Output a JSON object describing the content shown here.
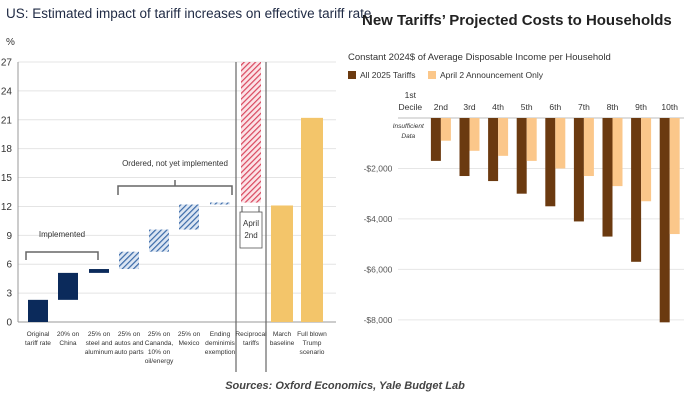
{
  "sources": "Sources: Oxford Economics, Yale Budget Lab",
  "chart_data": [
    {
      "type": "bar",
      "title": "US: Estimated impact of tariff increases on effective tariff rate",
      "ylabel": "%",
      "ylim": [
        0,
        27
      ],
      "yticks": [
        0,
        3,
        6,
        9,
        12,
        15,
        18,
        21,
        24,
        27
      ],
      "categories": [
        "Original tariff rate",
        "20% on China",
        "25% on steel and aluminum",
        "25% on autos and auto parts",
        "25% on Cananda, 10% on oil/energy",
        "25% on Mexico",
        "Ending deminimis exemption",
        "Reciprocal tariffs",
        "March baseline",
        "Full blown Trump scenario"
      ],
      "category_lines": [
        [
          "Original",
          "tariff rate"
        ],
        [
          "20% on",
          "China"
        ],
        [
          "25% on",
          "steel and",
          "aluminum"
        ],
        [
          "25% on",
          "autos and",
          "auto parts"
        ],
        [
          "25% on",
          "Cananda,",
          "10% on",
          "oil/energy"
        ],
        [
          "25% on",
          "Mexico"
        ],
        [
          "Ending",
          "deminimis",
          "exemption"
        ],
        [
          "Reciprocal",
          "tariffs"
        ],
        [
          "March",
          "baseline"
        ],
        [
          "Full blown",
          "Trump",
          "scenario"
        ]
      ],
      "bars": [
        {
          "start": 0,
          "end": 2.3,
          "style": "implemented",
          "color": "#0b2a5b"
        },
        {
          "start": 2.3,
          "end": 5.1,
          "style": "implemented",
          "color": "#0b2a5b"
        },
        {
          "start": 5.1,
          "end": 5.5,
          "style": "implemented",
          "color": "#0b2a5b"
        },
        {
          "start": 5.5,
          "end": 7.3,
          "style": "ordered",
          "color": "#3a6aa8"
        },
        {
          "start": 7.3,
          "end": 9.6,
          "style": "ordered",
          "color": "#3a6aa8"
        },
        {
          "start": 9.6,
          "end": 12.2,
          "style": "ordered",
          "color": "#3a6aa8"
        },
        {
          "start": 12.2,
          "end": 12.4,
          "style": "ordered",
          "color": "#3a6aa8"
        },
        {
          "start": 12.4,
          "end": 29.5,
          "style": "reciprocal",
          "color": "#e05a6e"
        },
        {
          "start": 0,
          "end": 12.1,
          "style": "baseline",
          "color": "#f3c56a"
        },
        {
          "start": 0,
          "end": 21.2,
          "style": "scenario",
          "color": "#f3c56a"
        }
      ],
      "annotations": {
        "implemented": "Implemented",
        "ordered": "Ordered, not yet implemented",
        "april": [
          "April",
          "2nd"
        ]
      }
    },
    {
      "type": "bar",
      "title": "New Tariffs’ Projected Costs to Households",
      "subtitle": "Constant 2024$ of Average Disposable Income per Household",
      "ylim": [
        -8800,
        0
      ],
      "yticks": [
        -2000,
        -4000,
        -6000,
        -8000
      ],
      "ytick_labels": [
        "-$2,000",
        "-$4,000",
        "-$6,000",
        "-$8,000"
      ],
      "categories": [
        "1st Decile",
        "2nd",
        "3rd",
        "4th",
        "5th",
        "6th",
        "7th",
        "8th",
        "9th",
        "10th"
      ],
      "category_lines": [
        [
          "1st",
          "Decile"
        ],
        [
          "2nd"
        ],
        [
          "3rd"
        ],
        [
          "4th"
        ],
        [
          "5th"
        ],
        [
          "6th"
        ],
        [
          "7th"
        ],
        [
          "8th"
        ],
        [
          "9th"
        ],
        [
          "10th"
        ]
      ],
      "note": [
        "Insufficient",
        "Data"
      ],
      "series": [
        {
          "name": "All 2025 Tariffs",
          "color": "#6b3a10",
          "values": [
            null,
            -1700,
            -2300,
            -2500,
            -3000,
            -3500,
            -4100,
            -4700,
            -5700,
            -8100
          ]
        },
        {
          "name": "April 2 Announcement Only",
          "color": "#fbc78a",
          "values": [
            null,
            -900,
            -1300,
            -1500,
            -1700,
            -2000,
            -2300,
            -2700,
            -3300,
            -4600
          ]
        }
      ]
    }
  ]
}
